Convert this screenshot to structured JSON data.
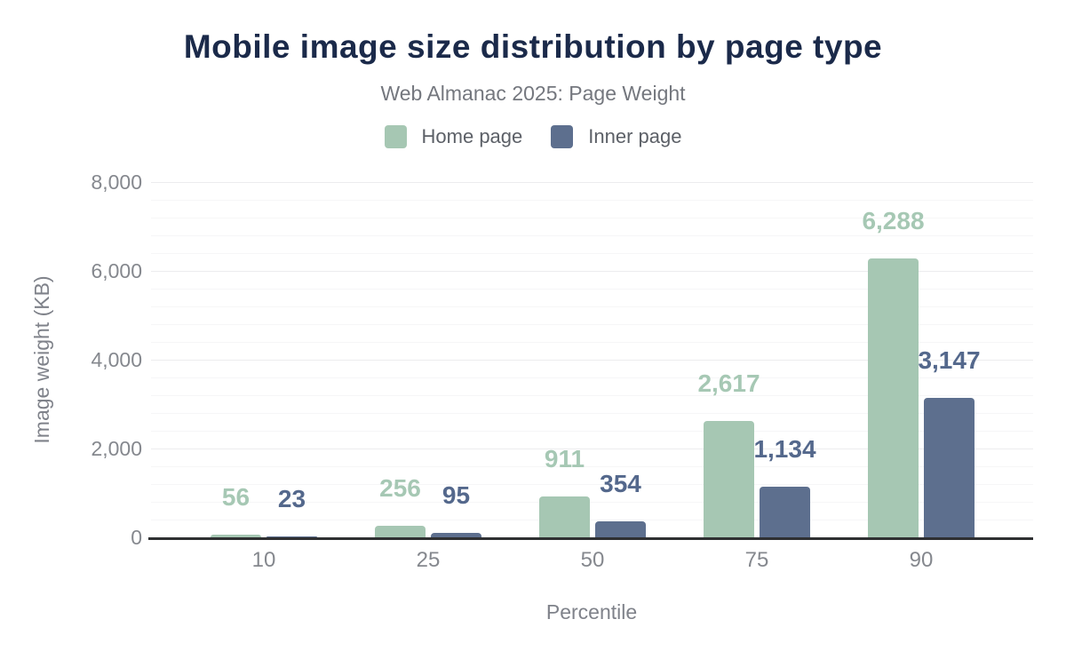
{
  "chart": {
    "title": "Mobile image size distribution by page type",
    "subtitle": "Web Almanac 2025: Page Weight",
    "xlabel": "Percentile",
    "ylabel": "Image weight (KB)"
  },
  "chart_data": {
    "type": "bar",
    "categories": [
      "10",
      "25",
      "50",
      "75",
      "90"
    ],
    "series": [
      {
        "name": "Home page",
        "color": "#a6c7b3",
        "label_color": "#a6c8b4",
        "values": [
          56,
          256,
          911,
          2617,
          6288
        ]
      },
      {
        "name": "Inner page",
        "color": "#5d6f8e",
        "label_color": "#54688c",
        "values": [
          23,
          95,
          354,
          1134,
          3147
        ]
      }
    ],
    "title": "Mobile image size distribution by page type",
    "xlabel": "Percentile",
    "ylabel": "Image weight (KB)",
    "ylim": [
      0,
      8000
    ],
    "y_major_ticks": [
      0,
      2000,
      4000,
      6000,
      8000
    ],
    "y_minor_step": 400,
    "grid": true,
    "legend_position": "top",
    "data_labels": true
  },
  "colors": {
    "title": "#1b2a4a",
    "subtitle": "#74777e",
    "legend_text": "#5c6067",
    "axis_text": "#85888e",
    "axis_title_text": "#7f828a",
    "axis_line": "#2f3032",
    "grid_minor": "#f6f6f7",
    "grid_major": "#ececee",
    "background": "#ffffff"
  }
}
